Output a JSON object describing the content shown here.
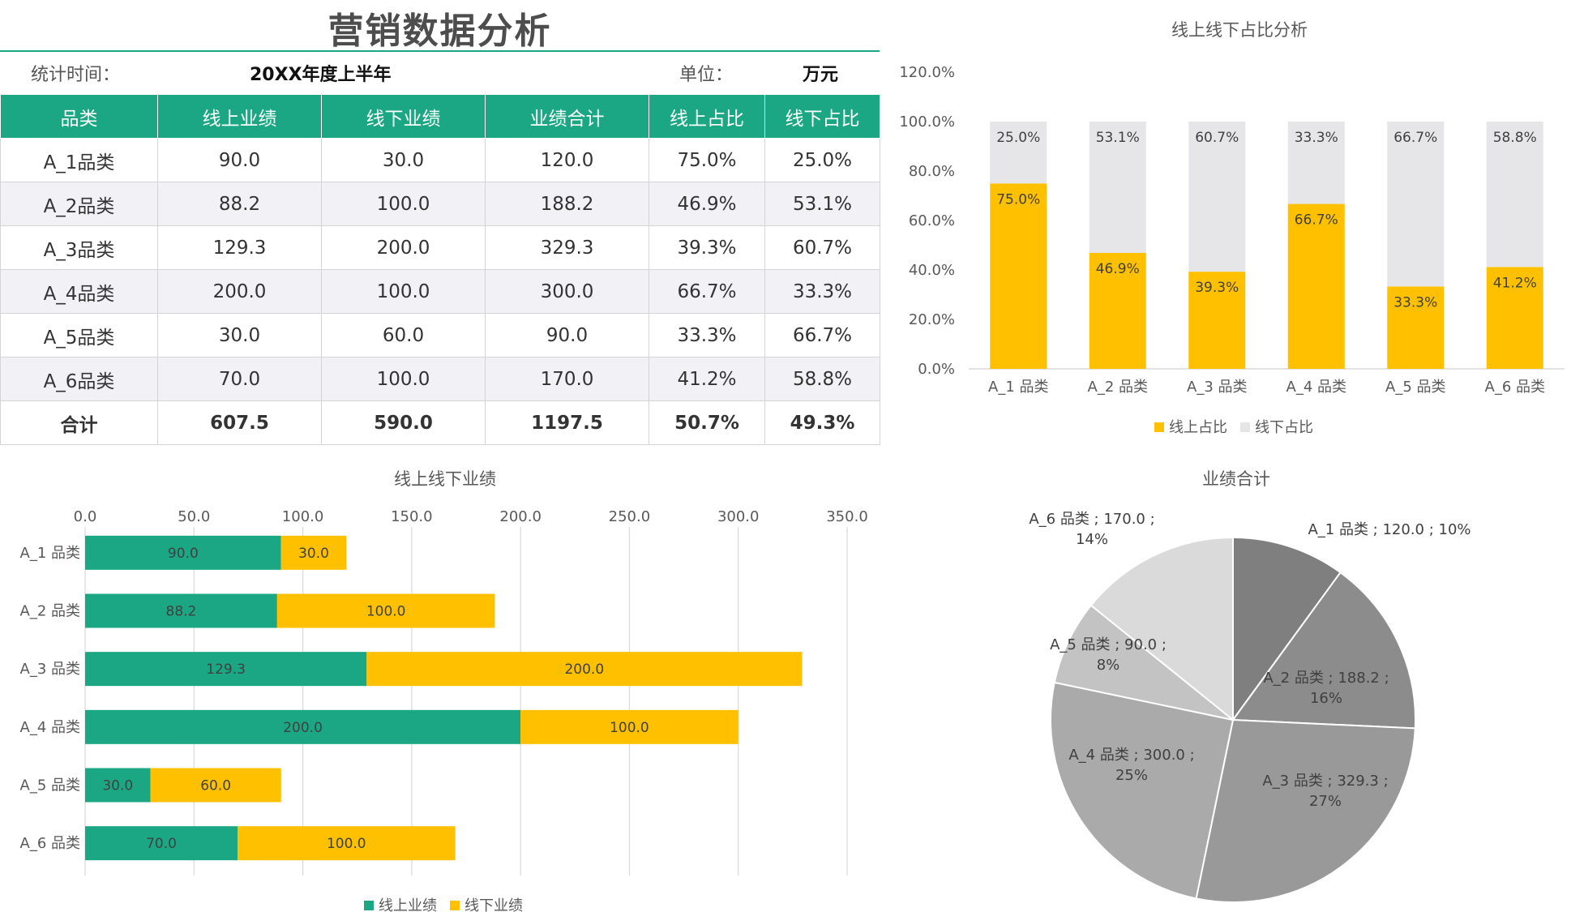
{
  "header": {
    "title": "营销数据分析",
    "period_label": "统计时间：",
    "period_value": "20XX年度上半年",
    "unit_label": "单位：",
    "unit_value": "万元"
  },
  "table": {
    "columns": [
      "品类",
      "线上业绩",
      "线下业绩",
      "业绩合计",
      "线上占比",
      "线下占比"
    ],
    "rows": [
      [
        "A_1品类",
        "90.0",
        "30.0",
        "120.0",
        "75.0%",
        "25.0%"
      ],
      [
        "A_2品类",
        "88.2",
        "100.0",
        "188.2",
        "46.9%",
        "53.1%"
      ],
      [
        "A_3品类",
        "129.3",
        "200.0",
        "329.3",
        "39.3%",
        "60.7%"
      ],
      [
        "A_4品类",
        "200.0",
        "100.0",
        "300.0",
        "66.7%",
        "33.3%"
      ],
      [
        "A_5品类",
        "30.0",
        "60.0",
        "90.0",
        "33.3%",
        "66.7%"
      ],
      [
        "A_6品类",
        "70.0",
        "100.0",
        "170.0",
        "41.2%",
        "58.8%"
      ]
    ],
    "total": [
      "合计",
      "607.5",
      "590.0",
      "1197.5",
      "50.7%",
      "49.3%"
    ]
  },
  "colors": {
    "online": "#1ba784",
    "offline": "#ffc000",
    "offline_share": "#e6e6e8",
    "pie": [
      "#7f7f7f",
      "#8c8c8c",
      "#999999",
      "#aaaaaa",
      "#c3c3c3",
      "#dadada"
    ]
  },
  "chart_data": [
    {
      "type": "bar",
      "orientation": "vertical",
      "stacked": "percent",
      "title": "线上线下占比分析",
      "categories": [
        "A_1 品类",
        "A_2 品类",
        "A_3 品类",
        "A_4 品类",
        "A_5 品类",
        "A_6 品类"
      ],
      "series": [
        {
          "name": "线上占比",
          "values": [
            75.0,
            46.9,
            39.3,
            66.7,
            33.3,
            41.2
          ]
        },
        {
          "name": "线下占比",
          "values": [
            25.0,
            53.1,
            60.7,
            33.3,
            66.7,
            58.8
          ]
        }
      ],
      "ylim": [
        0,
        120
      ],
      "yticks": [
        "0.0%",
        "20.0%",
        "40.0%",
        "60.0%",
        "80.0%",
        "100.0%",
        "120.0%"
      ],
      "legend": "bottom",
      "grid": false
    },
    {
      "type": "bar",
      "orientation": "horizontal",
      "stacked": true,
      "title": "线上线下业绩",
      "categories": [
        "A_1 品类",
        "A_2 品类",
        "A_3 品类",
        "A_4 品类",
        "A_5 品类",
        "A_6 品类"
      ],
      "series": [
        {
          "name": "线上业绩",
          "values": [
            90.0,
            88.2,
            129.3,
            200.0,
            30.0,
            70.0
          ]
        },
        {
          "name": "线下业绩",
          "values": [
            30.0,
            100.0,
            200.0,
            100.0,
            60.0,
            100.0
          ]
        }
      ],
      "xlim": [
        0,
        350
      ],
      "xticks": [
        "0.0",
        "50.0",
        "100.0",
        "150.0",
        "200.0",
        "250.0",
        "300.0",
        "350.0"
      ],
      "legend": "bottom",
      "grid": true
    },
    {
      "type": "pie",
      "title": "业绩合计",
      "labels": [
        "A_1 品类",
        "A_2 品类",
        "A_3 品类",
        "A_4 品类",
        "A_5 品类",
        "A_6 品类"
      ],
      "values": [
        120.0,
        188.2,
        329.3,
        300.0,
        90.0,
        170.0
      ],
      "data_labels": [
        [
          "A_1 品类 ; 120.0 ; 10%"
        ],
        [
          "A_2 品类 ; 188.2 ;",
          "16%"
        ],
        [
          "A_3 品类 ; 329.3 ;",
          "27%"
        ],
        [
          "A_4 品类 ; 300.0 ;",
          "25%"
        ],
        [
          "A_5 品类 ; 90.0 ;",
          "8%"
        ],
        [
          "A_6 品类 ; 170.0 ;",
          "14%"
        ]
      ]
    }
  ]
}
